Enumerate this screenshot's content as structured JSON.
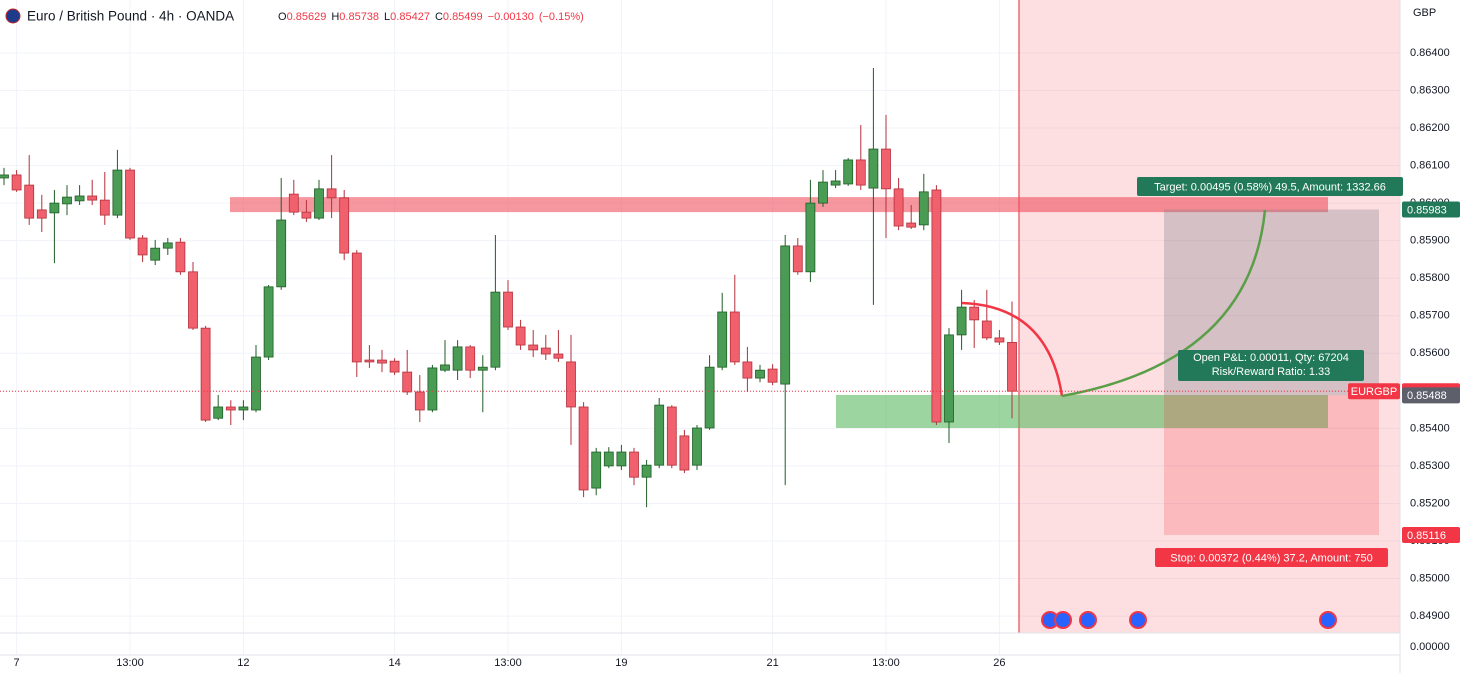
{
  "chart_data": {
    "type": "candlestick",
    "title": "Euro / British Pound · 4h · OANDA",
    "ohlc_labels": [
      "O",
      "H",
      "L",
      "C"
    ],
    "change": {
      "value": -0.0013,
      "label": "−0.00130"
    },
    "change_percent": {
      "value": -0.15,
      "label": "(−0.15%)"
    },
    "currency": "GBP",
    "symbol_tag": "EURGBP",
    "up_color": "#4a9b53",
    "down_color": "#f0616d",
    "categories": [
      null,
      "7",
      null,
      null,
      null,
      null,
      null,
      null,
      null,
      null,
      "13:00",
      null,
      null,
      null,
      null,
      null,
      null,
      null,
      null,
      "12",
      null,
      null,
      null,
      null,
      null,
      null,
      null,
      null,
      null,
      null,
      null,
      "14",
      null,
      null,
      null,
      null,
      null,
      null,
      null,
      null,
      "13:00",
      null,
      null,
      null,
      null,
      null,
      null,
      null,
      null,
      "19",
      null,
      null,
      null,
      null,
      null,
      null,
      null,
      null,
      null,
      null,
      null,
      "21",
      null,
      null,
      null,
      null,
      null,
      null,
      null,
      null,
      "13:00",
      null,
      null,
      null,
      null,
      null,
      null,
      null,
      null,
      "26",
      null
    ],
    "open": [
      0.86067,
      0.86075,
      0.86048,
      0.85982,
      0.85974,
      0.85998,
      0.86006,
      0.86019,
      0.86008,
      0.85968,
      0.86088,
      0.85907,
      0.85848,
      0.8588,
      0.85896,
      0.85817,
      0.85667,
      0.85427,
      0.85457,
      0.85449,
      0.85449,
      0.8559,
      0.85777,
      0.86024,
      0.85976,
      0.8596,
      0.86038,
      0.86014,
      0.85867,
      0.85582,
      0.85582,
      0.85579,
      0.8555,
      0.85497,
      0.85449,
      0.85555,
      0.85555,
      0.85617,
      0.85555,
      0.85563,
      0.85763,
      0.8567,
      0.85622,
      0.85614,
      0.85598,
      0.85577,
      0.85457,
      0.85241,
      0.853,
      0.853,
      0.85337,
      0.8527,
      0.85302,
      0.85457,
      0.8538,
      0.85302,
      0.85401,
      0.85563,
      0.8571,
      0.85577,
      0.85534,
      0.85558,
      0.85518,
      0.85886,
      0.85817,
      0.86,
      0.86048,
      0.86051,
      0.86115,
      0.8604,
      0.86144,
      0.86038,
      0.85947,
      0.85942,
      0.86035,
      0.85417,
      0.85649,
      0.85723,
      0.85686,
      0.85641,
      0.85629
    ],
    "high": [
      0.86094,
      0.86088,
      0.86128,
      0.86022,
      0.86035,
      0.86048,
      0.86048,
      0.86062,
      0.86083,
      0.86142,
      0.86094,
      0.85915,
      0.85902,
      0.85907,
      0.85907,
      0.85843,
      0.85673,
      0.85489,
      0.85475,
      0.85475,
      0.85622,
      0.85782,
      0.86067,
      0.86062,
      0.86008,
      0.86062,
      0.86128,
      0.86035,
      0.85875,
      0.85622,
      0.85609,
      0.85587,
      0.85609,
      0.85542,
      0.85569,
      0.85635,
      0.85635,
      0.85622,
      0.85595,
      0.85915,
      0.85795,
      0.85689,
      0.85662,
      0.85649,
      0.85662,
      0.85649,
      0.8547,
      0.85348,
      0.8535,
      0.85356,
      0.85348,
      0.85316,
      0.85481,
      0.85462,
      0.85396,
      0.85409,
      0.85595,
      0.85761,
      0.85809,
      0.85617,
      0.85569,
      0.85571,
      0.85915,
      0.85907,
      0.86062,
      0.86088,
      0.86088,
      0.8612,
      0.86208,
      0.8636,
      0.86235,
      0.86067,
      0.85995,
      0.86078,
      0.86048,
      0.85667,
      0.85769,
      0.85742,
      0.85769,
      0.85662,
      0.85738
    ],
    "low": [
      0.86048,
      0.8603,
      0.85942,
      0.85923,
      0.8584,
      0.85968,
      0.85995,
      0.85995,
      0.85942,
      0.8596,
      0.85902,
      0.85843,
      0.85835,
      0.85862,
      0.85809,
      0.85662,
      0.85417,
      0.85422,
      0.85409,
      0.85422,
      0.85443,
      0.85582,
      0.85769,
      0.85968,
      0.8595,
      0.85955,
      0.8596,
      0.85848,
      0.85537,
      0.85561,
      0.8555,
      0.85542,
      0.85489,
      0.85417,
      0.85443,
      0.8555,
      0.85529,
      0.85534,
      0.85443,
      0.85555,
      0.85662,
      0.85609,
      0.8559,
      0.85582,
      0.85577,
      0.85356,
      0.85217,
      0.85222,
      0.85294,
      0.85289,
      0.85249,
      0.8519,
      0.85294,
      0.85294,
      0.85281,
      0.85289,
      0.85396,
      0.85555,
      0.85569,
      0.85497,
      0.85523,
      0.85515,
      0.85249,
      0.85809,
      0.8579,
      0.8599,
      0.8604,
      0.86046,
      0.86035,
      0.85729,
      0.85907,
      0.85928,
      0.85931,
      0.85928,
      0.85409,
      0.85361,
      0.85609,
      0.85614,
      0.85635,
      0.85622,
      0.85427
    ],
    "close": [
      0.86075,
      0.86035,
      0.8596,
      0.8596,
      0.86,
      0.86016,
      0.86019,
      0.86008,
      0.85968,
      0.86088,
      0.85907,
      0.85862,
      0.8588,
      0.85894,
      0.85817,
      0.85667,
      0.85422,
      0.85457,
      0.85449,
      0.85457,
      0.8559,
      0.85777,
      0.85955,
      0.85976,
      0.8596,
      0.86038,
      0.86014,
      0.85867,
      0.85577,
      0.85577,
      0.85574,
      0.8555,
      0.85497,
      0.85449,
      0.85561,
      0.85569,
      0.85617,
      0.85555,
      0.85563,
      0.85763,
      0.8567,
      0.85622,
      0.85609,
      0.85598,
      0.85587,
      0.85457,
      0.85236,
      0.85337,
      0.85337,
      0.85337,
      0.8527,
      0.85302,
      0.85462,
      0.85302,
      0.85289,
      0.85401,
      0.85563,
      0.8571,
      0.85577,
      0.85534,
      0.85555,
      0.85523,
      0.85886,
      0.85817,
      0.86,
      0.86056,
      0.86059,
      0.86115,
      0.86048,
      0.86144,
      0.86038,
      0.85939,
      0.85936,
      0.8603,
      0.85417,
      0.85649,
      0.85723,
      0.85689,
      0.85641,
      0.8563,
      0.85499
    ],
    "ylim": [
      0.84855,
      0.86541
    ],
    "yticks": [
      {
        "value": 0.864,
        "label": "0.86400"
      },
      {
        "value": 0.863,
        "label": "0.86300"
      },
      {
        "value": 0.862,
        "label": "0.86200"
      },
      {
        "value": 0.861,
        "label": "0.86100"
      },
      {
        "value": 0.86,
        "label": "0.86000"
      },
      {
        "value": 0.859,
        "label": "0.85900"
      },
      {
        "value": 0.858,
        "label": "0.85800"
      },
      {
        "value": 0.857,
        "label": "0.85700"
      },
      {
        "value": 0.856,
        "label": "0.85600"
      },
      {
        "value": 0.855,
        "label": "0.85500"
      },
      {
        "value": 0.854,
        "label": "0.85400"
      },
      {
        "value": 0.853,
        "label": "0.85300"
      },
      {
        "value": 0.852,
        "label": "0.85200"
      },
      {
        "value": 0.851,
        "label": "0.85100"
      },
      {
        "value": 0.85,
        "label": "0.85000"
      },
      {
        "value": 0.849,
        "label": "0.84900"
      }
    ],
    "indicator_tick": {
      "value": 0,
      "label": "0.00000"
    },
    "grid": true,
    "zones": [
      {
        "low": 0.85976,
        "high": 0.86016,
        "color": "rgba(240,80,95,0.6)"
      },
      {
        "low": 0.85401,
        "high": 0.85489,
        "color": "rgba(90,185,95,0.6)"
      }
    ],
    "position": {
      "entry": 0.85488,
      "target": 0.85983,
      "stop": 0.85116,
      "target_text": "Target: 0.00495 (0.58%) 49.5, Amount: 1332.66",
      "pnl_text": "Open P&L: 0.00011, Qty: 67204",
      "rr_text": "Risk/Reward Ratio: 1.33",
      "stop_text": "Stop: 0.00372 (0.44%) 37.2, Amount: 750"
    }
  }
}
